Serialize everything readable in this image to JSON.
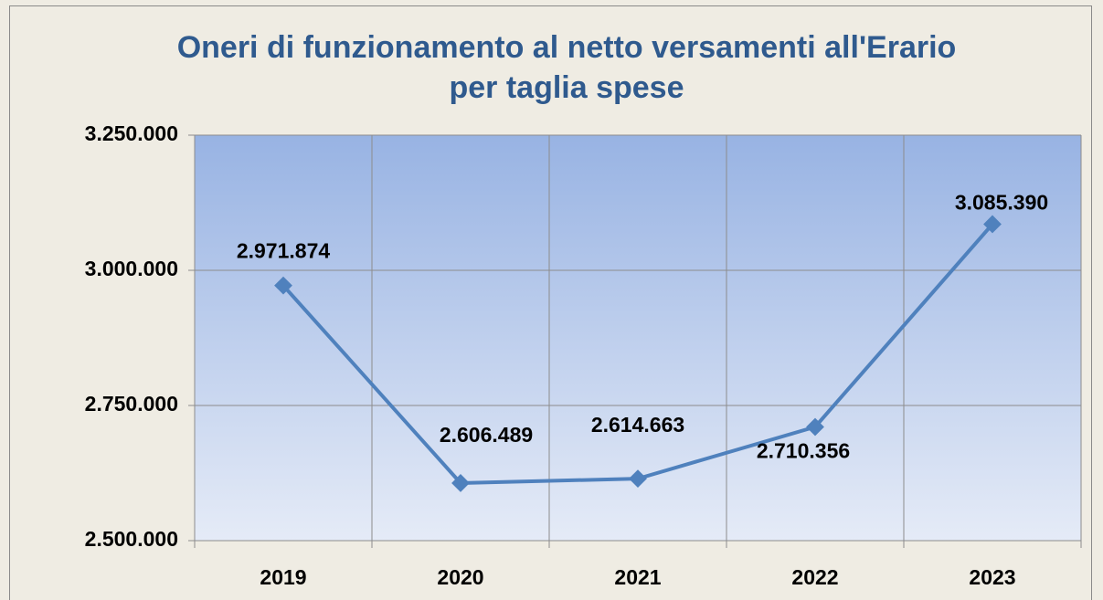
{
  "chart_data": {
    "type": "line",
    "title": "Oneri di funzionamento al netto versamenti all'Erario per taglia spese",
    "categories": [
      "2019",
      "2020",
      "2021",
      "2022",
      "2023"
    ],
    "series": [
      {
        "name": "Oneri",
        "color": "#4f81bd",
        "values": [
          2971874,
          2606489,
          2614663,
          2710356,
          3085390
        ],
        "value_labels": [
          "2.971.874",
          "2.606.489",
          "2.614.663",
          "2.710.356",
          "3.085.390"
        ]
      }
    ],
    "ylim": [
      2500000,
      3250000
    ],
    "yticks": [
      {
        "value": 2500000,
        "label": "2.500.000"
      },
      {
        "value": 2750000,
        "label": "2.750.000"
      },
      {
        "value": 3000000,
        "label": "3.000.000"
      },
      {
        "value": 3250000,
        "label": "3.250.000"
      }
    ],
    "grid": true
  }
}
